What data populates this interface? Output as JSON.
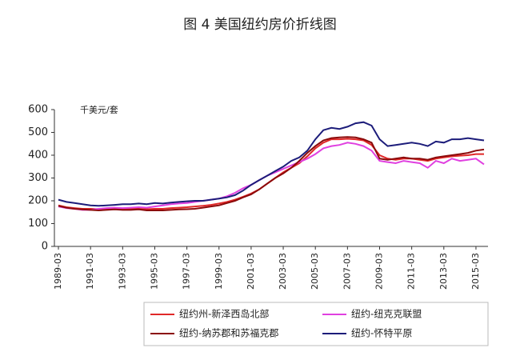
{
  "chart_data": {
    "type": "line",
    "title": "图 4  美国纽约房价折线图",
    "y_unit_label": "千美元/套",
    "categories": [
      "1989-03",
      null,
      null,
      null,
      "1991-03",
      null,
      null,
      null,
      "1993-03",
      null,
      null,
      null,
      "1995-03",
      null,
      null,
      null,
      "1997-03",
      null,
      null,
      null,
      "1999-03",
      null,
      null,
      null,
      "2001-03",
      null,
      null,
      null,
      "2003-03",
      null,
      null,
      null,
      "2005-03",
      null,
      null,
      null,
      "2007-03",
      null,
      null,
      null,
      "2009-03",
      null,
      null,
      null,
      "2011-03",
      null,
      null,
      null,
      "2013-03",
      null,
      null,
      null,
      "2015-03",
      null
    ],
    "series": [
      {
        "name": "纽约州-新泽西岛北部",
        "color": "#e02828",
        "values": [
          180,
          172,
          168,
          165,
          165,
          163,
          163,
          165,
          165,
          165,
          165,
          163,
          165,
          165,
          168,
          170,
          172,
          175,
          178,
          182,
          188,
          195,
          205,
          218,
          232,
          250,
          275,
          300,
          325,
          345,
          365,
          395,
          430,
          455,
          470,
          470,
          472,
          470,
          465,
          445,
          400,
          385,
          380,
          385,
          385,
          380,
          375,
          385,
          390,
          395,
          398,
          400,
          405,
          405
        ]
      },
      {
        "name": "纽约-纽克克联盟",
        "color": "#e040e0",
        "values": [
          175,
          168,
          165,
          160,
          160,
          165,
          168,
          170,
          168,
          170,
          172,
          170,
          175,
          180,
          185,
          188,
          190,
          195,
          200,
          205,
          210,
          220,
          235,
          255,
          270,
          290,
          310,
          325,
          340,
          355,
          370,
          385,
          405,
          430,
          440,
          445,
          455,
          450,
          440,
          420,
          375,
          370,
          365,
          375,
          370,
          365,
          345,
          375,
          365,
          385,
          375,
          380,
          385,
          360
        ]
      },
      {
        "name": "纽约-纳苏郡和苏福克郡",
        "color": "#8b0a0a",
        "values": [
          178,
          170,
          165,
          162,
          160,
          158,
          160,
          162,
          160,
          160,
          162,
          158,
          158,
          158,
          160,
          162,
          163,
          165,
          170,
          175,
          180,
          190,
          200,
          215,
          228,
          250,
          275,
          300,
          320,
          345,
          375,
          410,
          440,
          465,
          475,
          478,
          480,
          478,
          470,
          455,
          385,
          380,
          385,
          390,
          385,
          385,
          380,
          390,
          395,
          400,
          405,
          410,
          420,
          425
        ]
      },
      {
        "name": "纽约-怀特平原",
        "color": "#1c1c7a",
        "values": [
          205,
          195,
          190,
          185,
          180,
          178,
          180,
          182,
          185,
          185,
          188,
          185,
          190,
          188,
          192,
          195,
          198,
          200,
          200,
          205,
          210,
          215,
          225,
          245,
          270,
          290,
          310,
          330,
          350,
          375,
          390,
          420,
          470,
          510,
          520,
          515,
          525,
          540,
          545,
          530,
          470,
          440,
          445,
          450,
          455,
          450,
          440,
          460,
          455,
          470,
          470,
          475,
          470,
          465
        ]
      }
    ],
    "ylim": [
      0,
      600
    ],
    "yticks": [
      0,
      100,
      200,
      300,
      400,
      500,
      600
    ]
  }
}
